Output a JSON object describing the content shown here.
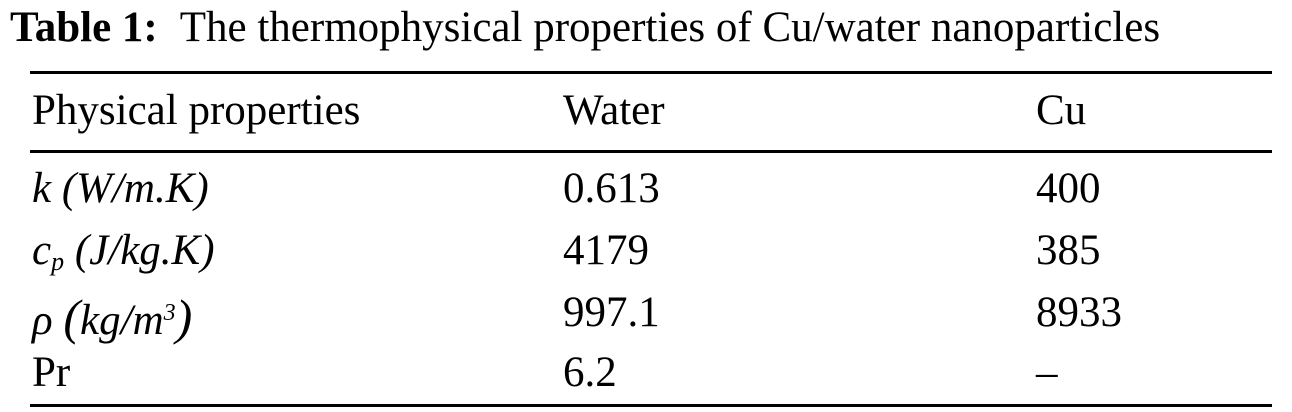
{
  "caption": {
    "label": "Table 1:",
    "text": "The thermophysical properties of Cu/water nanoparticles"
  },
  "table": {
    "headers": [
      "Physical properties",
      "Water",
      "Cu"
    ],
    "rows": [
      {
        "property": {
          "symbol": "k",
          "unit": "(W/m.K)"
        },
        "water": "0.613",
        "cu": "400"
      },
      {
        "property": {
          "symbol": "c",
          "subscript": "p",
          "unit": "(J/kg.K)"
        },
        "water": "4179",
        "cu": "385"
      },
      {
        "property": {
          "symbol": "ρ",
          "unit_open": "(",
          "unit_body": "kg/m",
          "unit_sup": "3",
          "unit_close": ")"
        },
        "water": "997.1",
        "cu": "8933"
      },
      {
        "property": {
          "symbol": "Pr"
        },
        "water": "6.2",
        "cu": "–"
      }
    ]
  }
}
